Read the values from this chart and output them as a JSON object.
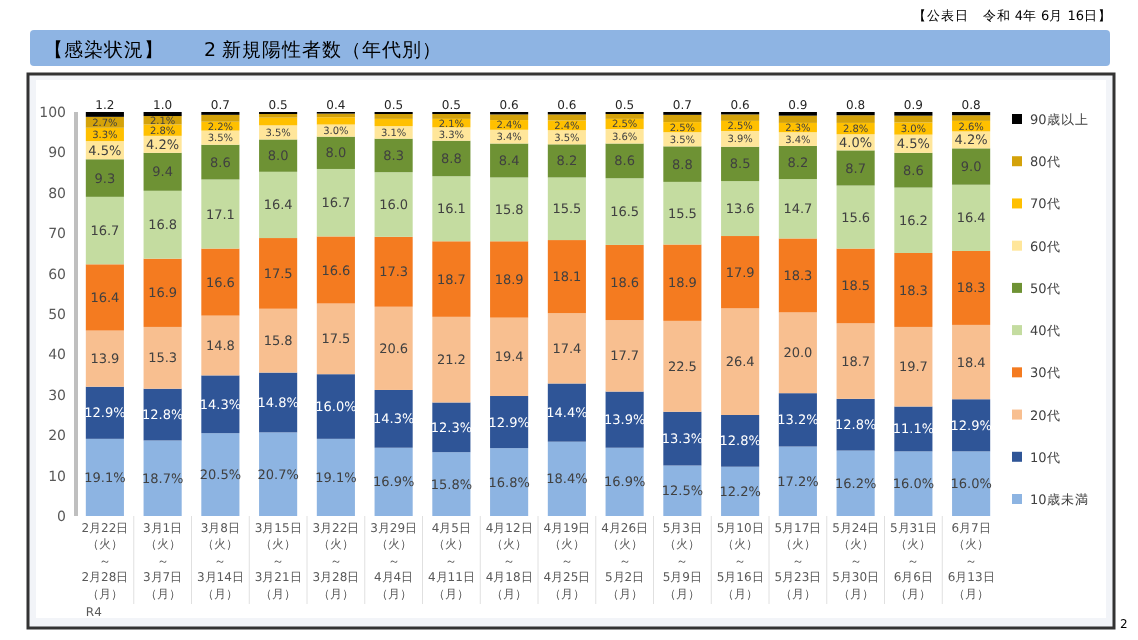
{
  "chart_data": {
    "type": "bar",
    "stacked": true,
    "title": "【感染状況】　　2 新規陽性者数（年代別）",
    "annotations": [
      "【公表日　令和 4年 6月 16日】",
      "R4",
      "2"
    ],
    "categories": [
      "2月22日（火）～2月28日（月）",
      "3月1日（火）～3月7日（月）",
      "3月8日（火）～3月14日（月）",
      "3月15日（火）～3月21日（月）",
      "3月22日（火）～3月28日（月）",
      "3月29日（火）～4月4日（月）",
      "4月5日（火）～4月11日（月）",
      "4月12日（火）～4月18日（月）",
      "4月19日（火）～4月25日（月）",
      "4月26日（火）～5月2日（月）",
      "5月3日（火）～5月9日（月）",
      "5月10日（火）～5月16日（月）",
      "5月17日（火）～5月23日（月）",
      "5月24日（火）～5月30日（月）",
      "5月31日（火）～6月6日（月）",
      "6月7日（火）～6月13日（月）"
    ],
    "series": [
      {
        "name": "10歳未満",
        "color": "#8db4e2",
        "values": [
          19.1,
          18.7,
          20.5,
          20.7,
          19.1,
          16.9,
          15.8,
          16.8,
          18.4,
          16.9,
          12.5,
          12.2,
          17.2,
          16.2,
          16.0,
          16.0
        ],
        "value_labels": [
          "19.1%",
          "18.7%",
          "20.5%",
          "20.7%",
          "19.1%",
          "16.9%",
          "15.8%",
          "16.8%",
          "18.4%",
          "16.9%",
          "12.5%",
          "12.2%",
          "17.2%",
          "16.2%",
          "16.0%",
          "16.0%"
        ]
      },
      {
        "name": "10代",
        "color": "#2f5597",
        "values": [
          12.9,
          12.8,
          14.3,
          14.8,
          16.0,
          14.3,
          12.3,
          12.9,
          14.4,
          13.9,
          13.3,
          12.8,
          13.2,
          12.8,
          11.1,
          12.9
        ],
        "value_labels": [
          "12.9%",
          "12.8%",
          "14.3%",
          "14.8%",
          "16.0%",
          "14.3%",
          "12.3%",
          "12.9%",
          "14.4%",
          "13.9%",
          "13.3%",
          "12.8%",
          "13.2%",
          "12.8%",
          "11.1%",
          "12.9%"
        ]
      },
      {
        "name": "20代",
        "color": "#f8bf90",
        "values": [
          13.9,
          15.3,
          14.8,
          15.8,
          17.5,
          20.6,
          21.2,
          19.4,
          17.4,
          17.7,
          22.5,
          26.4,
          20.0,
          18.7,
          19.7,
          18.4
        ],
        "value_labels": [
          "13.9",
          "15.3",
          "14.8",
          "15.8",
          "17.5",
          "20.6",
          "21.2",
          "19.4",
          "17.4",
          "17.7",
          "22.5",
          "26.4",
          "20.0",
          "18.7",
          "19.7",
          "18.4"
        ]
      },
      {
        "name": "30代",
        "color": "#f47b20",
        "values": [
          16.4,
          16.9,
          16.6,
          17.5,
          16.6,
          17.3,
          18.7,
          18.9,
          18.1,
          18.6,
          18.9,
          17.9,
          18.3,
          18.5,
          18.3,
          18.3
        ],
        "value_labels": [
          "16.4",
          "16.9",
          "16.6",
          "17.5",
          "16.6",
          "17.3",
          "18.7",
          "18.9",
          "18.1",
          "18.6",
          "18.9",
          "17.9",
          "18.3",
          "18.5",
          "18.3",
          "18.3"
        ]
      },
      {
        "name": "40代",
        "color": "#c4dca0",
        "values": [
          16.7,
          16.8,
          17.1,
          16.4,
          16.7,
          16.0,
          16.1,
          15.8,
          15.5,
          16.5,
          15.5,
          13.6,
          14.7,
          15.6,
          16.2,
          16.4
        ],
        "value_labels": [
          "16.7",
          "16.8",
          "17.1",
          "16.4",
          "16.7",
          "16.0",
          "16.1",
          "15.8",
          "15.5",
          "16.5",
          "15.5",
          "13.6",
          "14.7",
          "15.6",
          "16.2",
          "16.4"
        ]
      },
      {
        "name": "50代",
        "color": "#6e9234",
        "values": [
          9.3,
          9.4,
          8.6,
          8.0,
          8.0,
          8.3,
          8.8,
          8.4,
          8.2,
          8.6,
          8.8,
          8.5,
          8.2,
          8.7,
          8.6,
          9.0
        ],
        "value_labels": [
          "9.3",
          "9.4",
          "8.6",
          "8.0",
          "8.0",
          "8.3",
          "8.8",
          "8.4",
          "8.2",
          "8.6",
          "8.8",
          "8.5",
          "8.2",
          "8.7",
          "8.6",
          "9.0"
        ]
      },
      {
        "name": "60代",
        "color": "#ffe69a",
        "values": [
          4.5,
          4.2,
          3.5,
          3.5,
          3.0,
          3.1,
          3.3,
          3.4,
          3.5,
          3.6,
          3.5,
          3.9,
          3.4,
          4.0,
          4.5,
          4.2
        ],
        "value_labels": [
          "4.5%",
          "4.2%",
          "3.5%",
          "3.5%",
          "3.0%",
          "3.1%",
          "3.3%",
          "3.4%",
          "3.5%",
          "3.6%",
          "3.5%",
          "3.9%",
          "3.4%",
          "4.0%",
          "4.5%",
          "4.2%"
        ]
      },
      {
        "name": "70代",
        "color": "#ffc000",
        "values": [
          3.3,
          2.8,
          2.2,
          1.9,
          1.8,
          1.8,
          2.1,
          2.4,
          2.4,
          2.5,
          2.5,
          2.5,
          2.3,
          2.8,
          3.0,
          2.6
        ],
        "value_labels": [
          "3.3%",
          "2.8%",
          "2.2%",
          null,
          null,
          null,
          "2.1%",
          "2.4%",
          "2.4%",
          "2.5%",
          "2.5%",
          "2.5%",
          "2.3%",
          "2.8%",
          "3.0%",
          "2.6%"
        ]
      },
      {
        "name": "80代",
        "color": "#d4a20a",
        "values": [
          2.7,
          2.1,
          1.7,
          0.9,
          0.9,
          1.2,
          1.2,
          1.4,
          1.5,
          1.2,
          1.8,
          1.6,
          1.8,
          1.9,
          1.7,
          1.4
        ],
        "value_labels": [
          "2.7%",
          "2.1%",
          null,
          null,
          null,
          null,
          null,
          null,
          null,
          null,
          null,
          null,
          null,
          null,
          null,
          null
        ]
      },
      {
        "name": "90歳以上",
        "color": "#000000",
        "values": [
          1.2,
          1.0,
          0.7,
          0.5,
          0.4,
          0.5,
          0.5,
          0.6,
          0.6,
          0.5,
          0.7,
          0.6,
          0.9,
          0.8,
          0.9,
          0.8
        ],
        "value_labels": [
          "1.2",
          "1.0",
          "0.7",
          "0.5",
          "0.4",
          "0.5",
          "0.5",
          "0.6",
          "0.6",
          "0.5",
          "0.7",
          "0.6",
          "0.9",
          "0.8",
          "0.9",
          "0.8"
        ]
      }
    ],
    "ylim": [
      0,
      100
    ],
    "yticks": [
      0,
      10,
      20,
      30,
      40,
      50,
      60,
      70,
      80,
      90,
      100
    ],
    "legend": "right"
  }
}
